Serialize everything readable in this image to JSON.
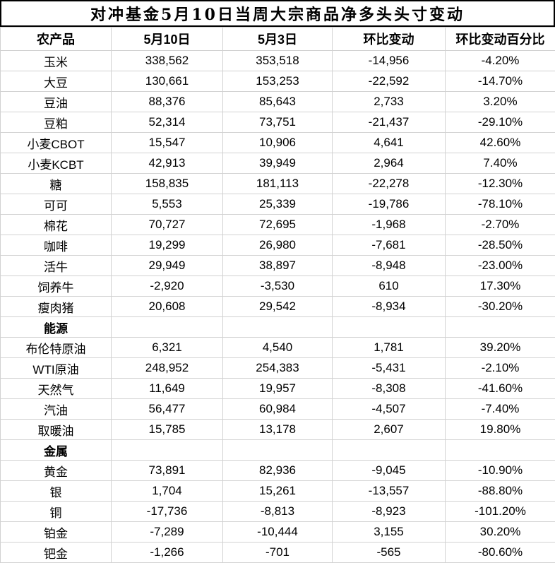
{
  "chart_data": {
    "type": "table",
    "title": "对冲基金5月10日当周大宗商品净多头头寸变动",
    "columns": [
      "农产品",
      "5月10日",
      "5月3日",
      "环比变动",
      "环比变动百分比"
    ],
    "rows": [
      {
        "section": false,
        "cells": [
          "玉米",
          "338,562",
          "353,518",
          "-14,956",
          "-4.20%"
        ]
      },
      {
        "section": false,
        "cells": [
          "大豆",
          "130,661",
          "153,253",
          "-22,592",
          "-14.70%"
        ]
      },
      {
        "section": false,
        "cells": [
          "豆油",
          "88,376",
          "85,643",
          "2,733",
          "3.20%"
        ]
      },
      {
        "section": false,
        "cells": [
          "豆粕",
          "52,314",
          "73,751",
          "-21,437",
          "-29.10%"
        ]
      },
      {
        "section": false,
        "cells": [
          "小麦CBOT",
          "15,547",
          "10,906",
          "4,641",
          "42.60%"
        ]
      },
      {
        "section": false,
        "cells": [
          "小麦KCBT",
          "42,913",
          "39,949",
          "2,964",
          "7.40%"
        ]
      },
      {
        "section": false,
        "cells": [
          "糖",
          "158,835",
          "181,113",
          "-22,278",
          "-12.30%"
        ]
      },
      {
        "section": false,
        "cells": [
          "可可",
          "5,553",
          "25,339",
          "-19,786",
          "-78.10%"
        ]
      },
      {
        "section": false,
        "cells": [
          "棉花",
          "70,727",
          "72,695",
          "-1,968",
          "-2.70%"
        ]
      },
      {
        "section": false,
        "cells": [
          "咖啡",
          "19,299",
          "26,980",
          "-7,681",
          "-28.50%"
        ]
      },
      {
        "section": false,
        "cells": [
          "活牛",
          "29,949",
          "38,897",
          "-8,948",
          "-23.00%"
        ]
      },
      {
        "section": false,
        "cells": [
          "饲养牛",
          "-2,920",
          "-3,530",
          "610",
          "17.30%"
        ]
      },
      {
        "section": false,
        "cells": [
          "瘦肉猪",
          "20,608",
          "29,542",
          "-8,934",
          "-30.20%"
        ]
      },
      {
        "section": true,
        "cells": [
          "能源",
          "",
          "",
          "",
          ""
        ]
      },
      {
        "section": false,
        "cells": [
          "布伦特原油",
          "6,321",
          "4,540",
          "1,781",
          "39.20%"
        ]
      },
      {
        "section": false,
        "cells": [
          "WTI原油",
          "248,952",
          "254,383",
          "-5,431",
          "-2.10%"
        ]
      },
      {
        "section": false,
        "cells": [
          "天然气",
          "11,649",
          "19,957",
          "-8,308",
          "-41.60%"
        ]
      },
      {
        "section": false,
        "cells": [
          "汽油",
          "56,477",
          "60,984",
          "-4,507",
          "-7.40%"
        ]
      },
      {
        "section": false,
        "cells": [
          "取暖油",
          "15,785",
          "13,178",
          "2,607",
          "19.80%"
        ]
      },
      {
        "section": true,
        "cells": [
          "金属",
          "",
          "",
          "",
          ""
        ]
      },
      {
        "section": false,
        "cells": [
          "黄金",
          "73,891",
          "82,936",
          "-9,045",
          "-10.90%"
        ]
      },
      {
        "section": false,
        "cells": [
          "银",
          "1,704",
          "15,261",
          "-13,557",
          "-88.80%"
        ]
      },
      {
        "section": false,
        "cells": [
          "铜",
          "-17,736",
          "-8,813",
          "-8,923",
          "-101.20%"
        ]
      },
      {
        "section": false,
        "cells": [
          "铂金",
          "-7,289",
          "-10,444",
          "3,155",
          "30.20%"
        ]
      },
      {
        "section": false,
        "cells": [
          "钯金",
          "-1,266",
          "-701",
          "-565",
          "-80.60%"
        ]
      }
    ],
    "layout": {
      "grid": "on",
      "border_color": "#d2d2d2",
      "title_border_color": "#000000",
      "text_color": "#000000",
      "background": "#ffffff"
    }
  }
}
